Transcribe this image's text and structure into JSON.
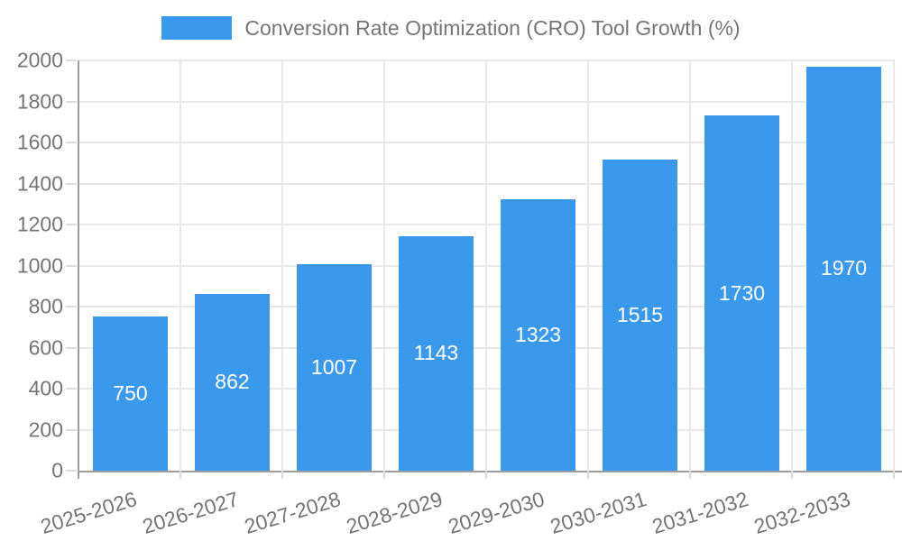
{
  "legend": {
    "label": "Conversion Rate Optimization (CRO) Tool Growth (%)"
  },
  "colors": {
    "bar": "#3A99ED",
    "axis": "#9E9E9E",
    "grid": "#E9E9E9",
    "tick": "#DCDCDC",
    "axis_text": "#757575",
    "legend_text": "#757575",
    "value_label": "#FFFFFF",
    "background": "#FFFFFF"
  },
  "chart_data": {
    "type": "bar",
    "title": "Conversion Rate Optimization (CRO) Tool Growth (%)",
    "categories": [
      "2025-2026",
      "2026-2027",
      "2027-2028",
      "2028-2029",
      "2029-2030",
      "2030-2031",
      "2031-2032",
      "2032-2033"
    ],
    "values": [
      750,
      862,
      1007,
      1143,
      1323,
      1515,
      1730,
      1970
    ],
    "yticks": [
      0,
      200,
      400,
      600,
      800,
      1000,
      1200,
      1400,
      1600,
      1800,
      2000
    ],
    "ylim": [
      0,
      2000
    ],
    "xlabel": "",
    "ylabel": "",
    "grid": true,
    "legend_position": "top-center",
    "bar_width_ratio": 0.73,
    "x_label_rotation_deg": -17,
    "value_labels": "inside-center"
  }
}
